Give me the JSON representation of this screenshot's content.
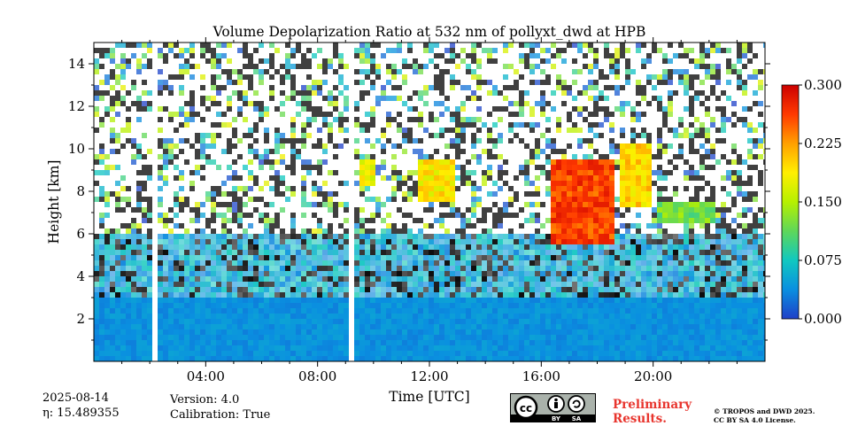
{
  "chart_data": {
    "type": "heatmap",
    "title": "Volume Depolarization Ratio at 532 nm of pollyxt_dwd at HPB",
    "xlabel": "Time [UTC]",
    "ylabel": "Height [km]",
    "xlim_hours": [
      0,
      24
    ],
    "ylim_km": [
      0,
      15
    ],
    "x_ticks": [
      {
        "hour": 4,
        "label": "04:00"
      },
      {
        "hour": 8,
        "label": "08:00"
      },
      {
        "hour": 12,
        "label": "12:00"
      },
      {
        "hour": 16,
        "label": "16:00"
      },
      {
        "hour": 20,
        "label": "20:00"
      }
    ],
    "y_ticks": [
      {
        "km": 2,
        "label": "2"
      },
      {
        "km": 4,
        "label": "4"
      },
      {
        "km": 6,
        "label": "6"
      },
      {
        "km": 8,
        "label": "8"
      },
      {
        "km": 10,
        "label": "10"
      },
      {
        "km": 12,
        "label": "12"
      },
      {
        "km": 14,
        "label": "14"
      }
    ],
    "colorbar": {
      "range": [
        0.0,
        0.3
      ],
      "ticks": [
        {
          "value": 0.0,
          "label": "0.000"
        },
        {
          "value": 0.075,
          "label": "0.075"
        },
        {
          "value": 0.15,
          "label": "0.150"
        },
        {
          "value": 0.225,
          "label": "0.225"
        },
        {
          "value": 0.3,
          "label": "0.300"
        }
      ],
      "colors": [
        "#1f3fc8",
        "#0a8fe0",
        "#10c8c0",
        "#5ed75a",
        "#b6f000",
        "#ffef00",
        "#ffa000",
        "#ff3a00",
        "#cc0000"
      ]
    },
    "data_gaps_hours": [
      [
        2.1,
        2.25
      ],
      [
        9.1,
        9.3
      ]
    ],
    "cloud_layers": [
      {
        "start_h": 9.5,
        "end_h": 10.0,
        "base_km": 8.3,
        "top_km": 9.5,
        "value": 0.18
      },
      {
        "start_h": 11.5,
        "end_h": 13.0,
        "base_km": 7.5,
        "top_km": 9.5,
        "value": 0.19
      },
      {
        "start_h": 16.3,
        "end_h": 18.7,
        "base_km": 5.6,
        "top_km": 9.4,
        "value": 0.26
      },
      {
        "start_h": 18.8,
        "end_h": 20.0,
        "base_km": 7.3,
        "top_km": 10.3,
        "value": 0.2
      },
      {
        "start_h": 20.2,
        "end_h": 22.2,
        "base_km": 6.5,
        "top_km": 7.5,
        "value": 0.12
      }
    ],
    "boundary_layer_top_km": 3.0,
    "boundary_layer_value": 0.04
  },
  "footer": {
    "date": "2025-08-14",
    "eta": "η: 15.489355",
    "version": "Version: 4.0",
    "calibration": "Calibration: True",
    "license_badge": [
      "BY",
      "SA"
    ],
    "preliminary_line1": "Preliminary",
    "preliminary_line2": "Results.",
    "copyright_line1": "© TROPOS and DWD 2025.",
    "copyright_line2": "CC BY SA 4.0 License."
  }
}
